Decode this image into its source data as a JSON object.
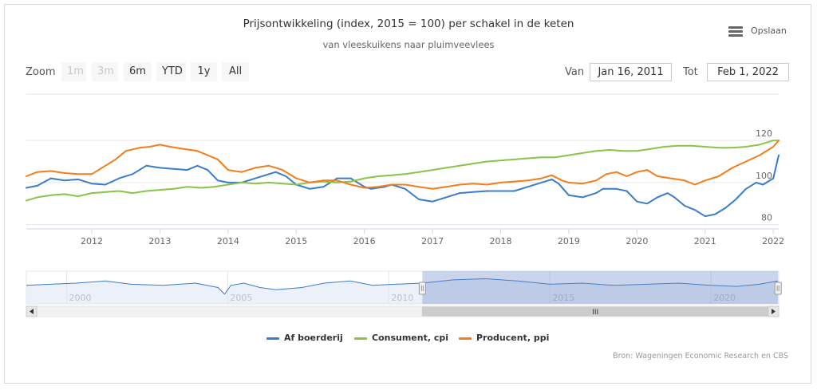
{
  "header": {
    "title": "Prijsontwikkeling (index, 2015 = 100) per schakel in de keten",
    "subtitle": "van vleeskuikens naar pluimveevlees",
    "menu_label": "Opslaan"
  },
  "range_selector": {
    "zoom_label": "Zoom",
    "buttons": [
      {
        "label": "1m",
        "enabled": false
      },
      {
        "label": "3m",
        "enabled": false
      },
      {
        "label": "6m",
        "enabled": true
      },
      {
        "label": "YTD",
        "enabled": true
      },
      {
        "label": "1y",
        "enabled": true
      },
      {
        "label": "All",
        "enabled": true
      }
    ],
    "from_label": "Van",
    "from_value": "Jan 16, 2011",
    "to_label": "Tot",
    "to_value": "Feb 1, 2022"
  },
  "navigator": {
    "year_labels": [
      "2000",
      "2005",
      "2010",
      "2015",
      "2020"
    ],
    "x_range": [
      1998.75,
      2022.1
    ],
    "selected_range": [
      2011.04,
      2022.08
    ],
    "scroll_grip": "III"
  },
  "credits": "Bron: Wageningen Economic Research en CBS",
  "chart_data": {
    "type": "line",
    "title": "Prijsontwikkeling (index, 2015 = 100) per schakel in de keten",
    "subtitle": "van vleeskuikens naar pluimveevlees",
    "xlabel": "",
    "ylabel": "",
    "x_range": [
      2011.04,
      2022.08
    ],
    "x_ticks": [
      2012,
      2013,
      2014,
      2015,
      2016,
      2017,
      2018,
      2019,
      2020,
      2021,
      2022
    ],
    "x_tick_labels": [
      "2012",
      "2013",
      "2014",
      "2015",
      "2016",
      "2017",
      "2018",
      "2019",
      "2020",
      "2021",
      "2022"
    ],
    "ylim": [
      78,
      142
    ],
    "y_ticks": [
      80,
      100,
      120
    ],
    "y_tick_labels": [
      "80",
      "100",
      "120"
    ],
    "grid": true,
    "legend_position": "bottom",
    "series": [
      {
        "name": "Af boerderij",
        "color": "#3a7cc9",
        "points": [
          [
            2011.04,
            97.5
          ],
          [
            2011.2,
            98.5
          ],
          [
            2011.4,
            102
          ],
          [
            2011.6,
            101
          ],
          [
            2011.8,
            101.5
          ],
          [
            2012.0,
            99.5
          ],
          [
            2012.2,
            99
          ],
          [
            2012.4,
            102
          ],
          [
            2012.6,
            104
          ],
          [
            2012.8,
            108
          ],
          [
            2013.0,
            107
          ],
          [
            2013.2,
            106.5
          ],
          [
            2013.4,
            106
          ],
          [
            2013.55,
            108
          ],
          [
            2013.7,
            106
          ],
          [
            2013.85,
            101
          ],
          [
            2014.0,
            100
          ],
          [
            2014.2,
            100
          ],
          [
            2014.4,
            102
          ],
          [
            2014.6,
            104
          ],
          [
            2014.7,
            105
          ],
          [
            2014.85,
            103
          ],
          [
            2015.0,
            99
          ],
          [
            2015.2,
            97
          ],
          [
            2015.4,
            98
          ],
          [
            2015.5,
            100
          ],
          [
            2015.6,
            102
          ],
          [
            2015.8,
            102
          ],
          [
            2016.0,
            98
          ],
          [
            2016.1,
            97
          ],
          [
            2016.3,
            98
          ],
          [
            2016.4,
            99
          ],
          [
            2016.6,
            97
          ],
          [
            2016.8,
            92
          ],
          [
            2017.0,
            91
          ],
          [
            2017.2,
            93
          ],
          [
            2017.4,
            95
          ],
          [
            2017.6,
            95.5
          ],
          [
            2017.8,
            96
          ],
          [
            2018.0,
            96
          ],
          [
            2018.2,
            96
          ],
          [
            2018.4,
            98
          ],
          [
            2018.6,
            100
          ],
          [
            2018.75,
            101.5
          ],
          [
            2018.85,
            99.5
          ],
          [
            2019.0,
            94
          ],
          [
            2019.2,
            93
          ],
          [
            2019.4,
            95
          ],
          [
            2019.5,
            97
          ],
          [
            2019.7,
            97
          ],
          [
            2019.85,
            96
          ],
          [
            2020.0,
            91
          ],
          [
            2020.15,
            90
          ],
          [
            2020.3,
            93
          ],
          [
            2020.45,
            95
          ],
          [
            2020.55,
            93
          ],
          [
            2020.7,
            89
          ],
          [
            2020.85,
            87
          ],
          [
            2021.0,
            84
          ],
          [
            2021.15,
            85
          ],
          [
            2021.3,
            88
          ],
          [
            2021.45,
            92
          ],
          [
            2021.6,
            97
          ],
          [
            2021.75,
            100
          ],
          [
            2021.85,
            99
          ],
          [
            2022.0,
            102
          ],
          [
            2022.08,
            113
          ]
        ]
      },
      {
        "name": "Consument, cpi",
        "color": "#8bc34a",
        "points": [
          [
            2011.04,
            91.5
          ],
          [
            2011.2,
            93
          ],
          [
            2011.4,
            94
          ],
          [
            2011.6,
            94.5
          ],
          [
            2011.8,
            93.5
          ],
          [
            2012.0,
            95
          ],
          [
            2012.2,
            95.5
          ],
          [
            2012.4,
            96
          ],
          [
            2012.6,
            95
          ],
          [
            2012.8,
            96
          ],
          [
            2013.0,
            96.5
          ],
          [
            2013.2,
            97
          ],
          [
            2013.4,
            98
          ],
          [
            2013.6,
            97.5
          ],
          [
            2013.8,
            98
          ],
          [
            2014.0,
            99
          ],
          [
            2014.2,
            100
          ],
          [
            2014.4,
            99.5
          ],
          [
            2014.6,
            100
          ],
          [
            2014.8,
            99.5
          ],
          [
            2015.0,
            99
          ],
          [
            2015.2,
            100
          ],
          [
            2015.4,
            100.5
          ],
          [
            2015.6,
            100
          ],
          [
            2015.8,
            100.5
          ],
          [
            2016.0,
            102
          ],
          [
            2016.2,
            103
          ],
          [
            2016.4,
            103.5
          ],
          [
            2016.6,
            104
          ],
          [
            2016.8,
            105
          ],
          [
            2017.0,
            106
          ],
          [
            2017.2,
            107
          ],
          [
            2017.4,
            108
          ],
          [
            2017.6,
            109
          ],
          [
            2017.8,
            110
          ],
          [
            2018.0,
            110.5
          ],
          [
            2018.2,
            111
          ],
          [
            2018.4,
            111.5
          ],
          [
            2018.6,
            112
          ],
          [
            2018.8,
            112
          ],
          [
            2019.0,
            113
          ],
          [
            2019.2,
            114
          ],
          [
            2019.4,
            115
          ],
          [
            2019.6,
            115.5
          ],
          [
            2019.8,
            115
          ],
          [
            2020.0,
            115
          ],
          [
            2020.2,
            116
          ],
          [
            2020.4,
            117
          ],
          [
            2020.6,
            117.5
          ],
          [
            2020.8,
            117.5
          ],
          [
            2021.0,
            117
          ],
          [
            2021.2,
            116.5
          ],
          [
            2021.4,
            116.5
          ],
          [
            2021.6,
            117
          ],
          [
            2021.8,
            118
          ],
          [
            2022.0,
            120
          ],
          [
            2022.08,
            120
          ]
        ]
      },
      {
        "name": "Producent, ppi",
        "color": "#f27d1c",
        "points": [
          [
            2011.04,
            103
          ],
          [
            2011.2,
            105
          ],
          [
            2011.4,
            105.5
          ],
          [
            2011.6,
            104.5
          ],
          [
            2011.8,
            104
          ],
          [
            2012.0,
            104
          ],
          [
            2012.2,
            108
          ],
          [
            2012.35,
            111
          ],
          [
            2012.5,
            115
          ],
          [
            2012.7,
            116.5
          ],
          [
            2012.85,
            117
          ],
          [
            2013.0,
            118
          ],
          [
            2013.15,
            117
          ],
          [
            2013.35,
            116
          ],
          [
            2013.55,
            115
          ],
          [
            2013.7,
            113
          ],
          [
            2013.85,
            111
          ],
          [
            2014.0,
            106
          ],
          [
            2014.2,
            105
          ],
          [
            2014.4,
            107
          ],
          [
            2014.6,
            108
          ],
          [
            2014.8,
            106
          ],
          [
            2015.0,
            102
          ],
          [
            2015.2,
            100
          ],
          [
            2015.4,
            101
          ],
          [
            2015.6,
            101
          ],
          [
            2015.8,
            99
          ],
          [
            2016.0,
            97.5
          ],
          [
            2016.2,
            98
          ],
          [
            2016.4,
            99
          ],
          [
            2016.6,
            99
          ],
          [
            2016.8,
            98
          ],
          [
            2017.0,
            97
          ],
          [
            2017.2,
            98
          ],
          [
            2017.4,
            99
          ],
          [
            2017.6,
            99.5
          ],
          [
            2017.8,
            99
          ],
          [
            2018.0,
            100
          ],
          [
            2018.2,
            100.5
          ],
          [
            2018.4,
            101
          ],
          [
            2018.6,
            102
          ],
          [
            2018.75,
            103.5
          ],
          [
            2018.9,
            101
          ],
          [
            2019.0,
            100
          ],
          [
            2019.2,
            99.5
          ],
          [
            2019.4,
            101
          ],
          [
            2019.55,
            104
          ],
          [
            2019.7,
            105
          ],
          [
            2019.85,
            103
          ],
          [
            2020.0,
            105
          ],
          [
            2020.15,
            106
          ],
          [
            2020.3,
            103
          ],
          [
            2020.5,
            102
          ],
          [
            2020.7,
            101
          ],
          [
            2020.85,
            99
          ],
          [
            2021.0,
            101
          ],
          [
            2021.2,
            103
          ],
          [
            2021.4,
            107
          ],
          [
            2021.6,
            110
          ],
          [
            2021.8,
            113
          ],
          [
            2022.0,
            117
          ],
          [
            2022.08,
            120
          ]
        ]
      }
    ],
    "navigator_series": [
      [
        1998.75,
        99
      ],
      [
        1999.5,
        99.5
      ],
      [
        2000.3,
        100
      ],
      [
        2001.2,
        101
      ],
      [
        2002.0,
        99.5
      ],
      [
        2003.0,
        99
      ],
      [
        2004.0,
        100
      ],
      [
        2004.7,
        98
      ],
      [
        2004.9,
        95
      ],
      [
        2005.1,
        99
      ],
      [
        2005.5,
        100
      ],
      [
        2006.0,
        98
      ],
      [
        2006.5,
        97
      ],
      [
        2007.3,
        98
      ],
      [
        2008.0,
        100
      ],
      [
        2008.8,
        101
      ],
      [
        2009.5,
        99
      ],
      [
        2010.2,
        99.5
      ],
      [
        2011.04,
        100
      ],
      [
        2012.0,
        101.5
      ],
      [
        2013.0,
        102
      ],
      [
        2014.0,
        101
      ],
      [
        2015.0,
        99.5
      ],
      [
        2016.0,
        100
      ],
      [
        2017.0,
        99
      ],
      [
        2018.0,
        99.5
      ],
      [
        2019.0,
        100
      ],
      [
        2020.0,
        99
      ],
      [
        2020.8,
        98.5
      ],
      [
        2021.5,
        99.5
      ],
      [
        2022.08,
        101
      ]
    ]
  }
}
